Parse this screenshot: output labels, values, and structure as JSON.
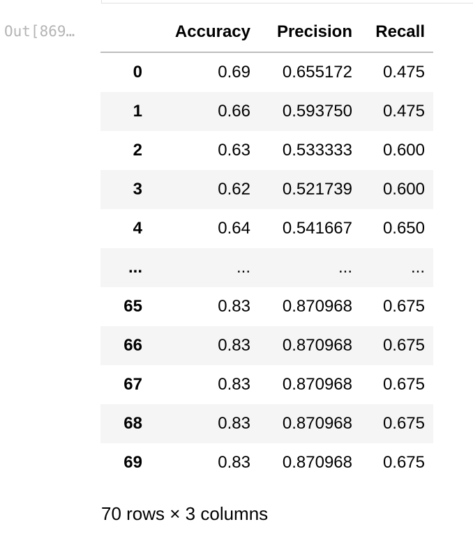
{
  "output_prompt": "Out[869…",
  "table": {
    "index_header": "",
    "columns": [
      "Accuracy",
      "Precision",
      "Recall"
    ],
    "rows": [
      {
        "index": "0",
        "values": [
          "0.69",
          "0.655172",
          "0.475"
        ]
      },
      {
        "index": "1",
        "values": [
          "0.66",
          "0.593750",
          "0.475"
        ]
      },
      {
        "index": "2",
        "values": [
          "0.63",
          "0.533333",
          "0.600"
        ]
      },
      {
        "index": "3",
        "values": [
          "0.62",
          "0.521739",
          "0.600"
        ]
      },
      {
        "index": "4",
        "values": [
          "0.64",
          "0.541667",
          "0.650"
        ]
      },
      {
        "index": "...",
        "values": [
          "...",
          "...",
          "..."
        ]
      },
      {
        "index": "65",
        "values": [
          "0.83",
          "0.870968",
          "0.675"
        ]
      },
      {
        "index": "66",
        "values": [
          "0.83",
          "0.870968",
          "0.675"
        ]
      },
      {
        "index": "67",
        "values": [
          "0.83",
          "0.870968",
          "0.675"
        ]
      },
      {
        "index": "68",
        "values": [
          "0.83",
          "0.870968",
          "0.675"
        ]
      },
      {
        "index": "69",
        "values": [
          "0.83",
          "0.870968",
          "0.675"
        ]
      }
    ]
  },
  "shape_text": "70 rows × 3 columns"
}
